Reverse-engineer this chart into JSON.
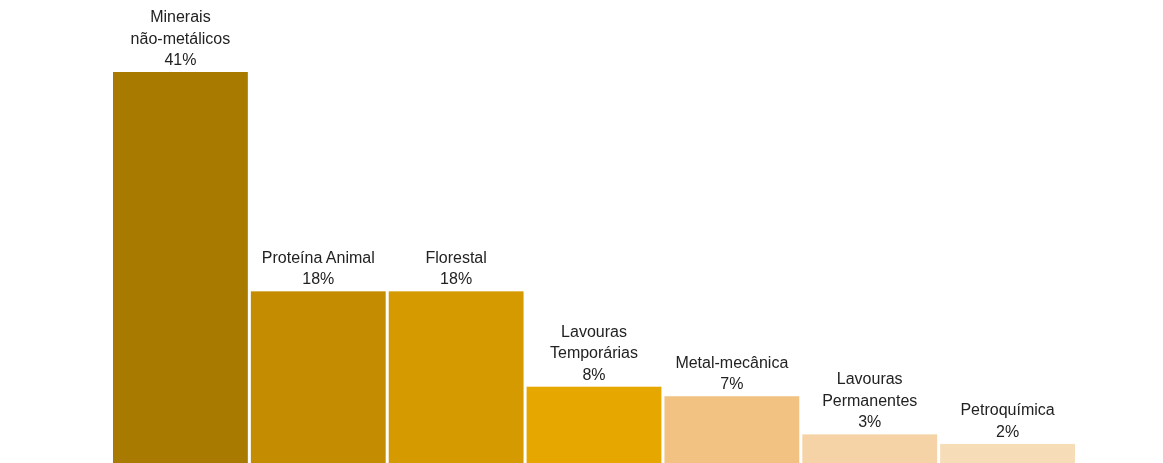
{
  "chart_data": {
    "type": "bar",
    "categories": [
      "Minerais não-metálicos",
      "Proteína Animal",
      "Florestal",
      "Lavouras Temporárias",
      "Metal-mecânica",
      "Lavouras Permanentes",
      "Petroquímica"
    ],
    "values": [
      41,
      18,
      18,
      8,
      7,
      3,
      2
    ],
    "colors": [
      "#a87a00",
      "#c48c00",
      "#d49a00",
      "#e6a800",
      "#f2c282",
      "#f5d3a6",
      "#f7dcb8"
    ],
    "value_labels": [
      "41%",
      "18%",
      "18%",
      "8%",
      "7%",
      "3%",
      "2%"
    ]
  }
}
